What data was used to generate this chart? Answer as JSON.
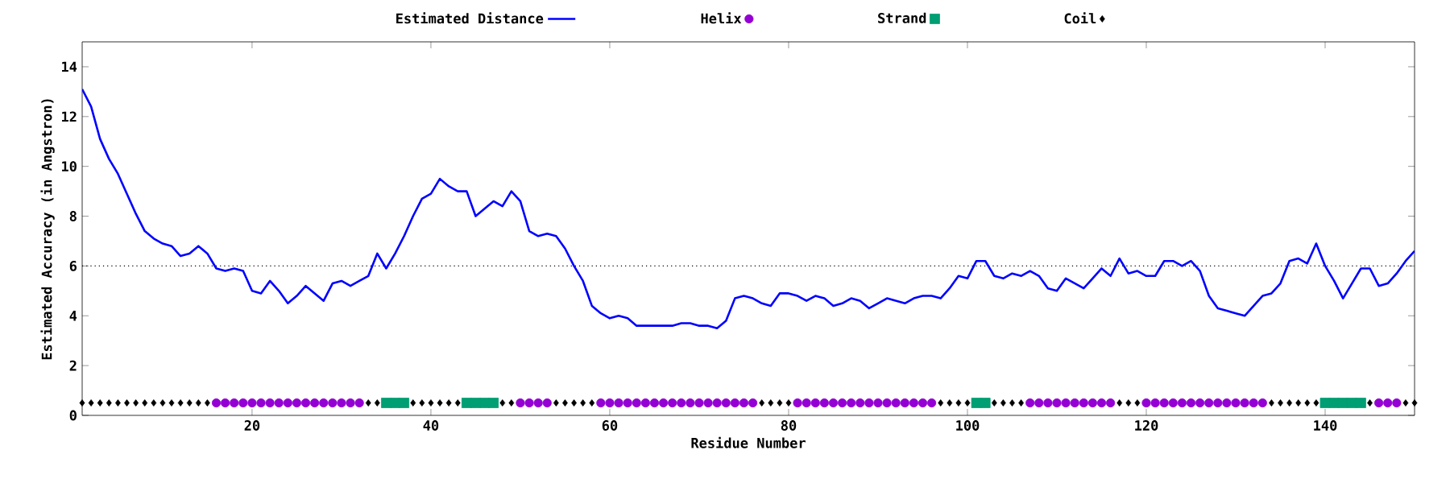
{
  "chart_data": {
    "type": "line",
    "xlabel": "Residue Number",
    "ylabel": "Estimated Accuracy (in Angstron)",
    "xlim": [
      1,
      150
    ],
    "ylim": [
      0,
      15
    ],
    "xticks": [
      20,
      40,
      60,
      80,
      100,
      120,
      140
    ],
    "yticks": [
      0,
      2,
      4,
      6,
      8,
      10,
      12,
      14
    ],
    "legend": "top",
    "ref_lines": [
      {
        "axis": "y",
        "value": 6,
        "color": "#000000",
        "line_style": "dotted"
      }
    ],
    "series": [
      {
        "name": "Estimated Distance",
        "color": "#0000ff",
        "marker": "none",
        "line_style": "solid",
        "x": [
          1,
          2,
          3,
          4,
          5,
          6,
          7,
          8,
          9,
          10,
          11,
          12,
          13,
          14,
          15,
          16,
          17,
          18,
          19,
          20,
          21,
          22,
          23,
          24,
          25,
          26,
          27,
          28,
          29,
          30,
          31,
          32,
          33,
          34,
          35,
          36,
          37,
          38,
          39,
          40,
          41,
          42,
          43,
          44,
          45,
          46,
          47,
          48,
          49,
          50,
          51,
          52,
          53,
          54,
          55,
          56,
          57,
          58,
          59,
          60,
          61,
          62,
          63,
          64,
          65,
          66,
          67,
          68,
          69,
          70,
          71,
          72,
          73,
          74,
          75,
          76,
          77,
          78,
          79,
          80,
          81,
          82,
          83,
          84,
          85,
          86,
          87,
          88,
          89,
          90,
          91,
          92,
          93,
          94,
          95,
          96,
          97,
          98,
          99,
          100,
          101,
          102,
          103,
          104,
          105,
          106,
          107,
          108,
          109,
          110,
          111,
          112,
          113,
          114,
          115,
          116,
          117,
          118,
          119,
          120,
          121,
          122,
          123,
          124,
          125,
          126,
          127,
          128,
          129,
          130,
          131,
          132,
          133,
          134,
          135,
          136,
          137,
          138,
          139,
          140,
          141,
          142,
          143,
          144,
          145,
          146,
          147,
          148,
          149,
          150
        ],
        "values": [
          13.1,
          12.4,
          11.1,
          10.3,
          9.7,
          8.9,
          8.1,
          7.4,
          7.1,
          6.9,
          6.8,
          6.4,
          6.5,
          6.8,
          6.5,
          5.9,
          5.8,
          5.9,
          5.8,
          5.0,
          4.9,
          5.4,
          5.0,
          4.5,
          4.8,
          5.2,
          4.9,
          4.6,
          5.3,
          5.4,
          5.2,
          5.4,
          5.6,
          6.5,
          5.9,
          6.5,
          7.2,
          8.0,
          8.7,
          8.9,
          9.5,
          9.2,
          9.0,
          9.0,
          8.0,
          8.3,
          8.6,
          8.4,
          9.0,
          8.6,
          7.4,
          7.2,
          7.3,
          7.2,
          6.7,
          6.0,
          5.4,
          4.4,
          4.1,
          3.9,
          4.0,
          3.9,
          3.6,
          3.6,
          3.6,
          3.6,
          3.6,
          3.7,
          3.7,
          3.6,
          3.6,
          3.5,
          3.8,
          4.7,
          4.8,
          4.7,
          4.5,
          4.4,
          4.9,
          4.9,
          4.8,
          4.6,
          4.8,
          4.7,
          4.4,
          4.5,
          4.7,
          4.6,
          4.3,
          4.5,
          4.7,
          4.6,
          4.5,
          4.7,
          4.8,
          4.8,
          4.7,
          5.1,
          5.6,
          5.5,
          6.2,
          6.2,
          5.6,
          5.5,
          5.7,
          5.6,
          5.8,
          5.6,
          5.1,
          5.0,
          5.5,
          5.3,
          5.1,
          5.5,
          5.9,
          5.6,
          6.3,
          5.7,
          5.8,
          5.6,
          5.6,
          6.2,
          6.2,
          6.0,
          6.2,
          5.8,
          4.8,
          4.3,
          4.2,
          4.1,
          4.0,
          4.4,
          4.8,
          4.9,
          5.3,
          6.2,
          6.3,
          6.1,
          6.9,
          6.0,
          5.4,
          4.7,
          5.3,
          5.9,
          5.9,
          5.2,
          5.3,
          5.7,
          6.2,
          6.6
        ]
      },
      {
        "name": "Helix",
        "type": "scatter",
        "color": "#9400d3",
        "marker": "circle",
        "x": [
          16,
          17,
          18,
          19,
          20,
          21,
          22,
          23,
          24,
          25,
          26,
          27,
          28,
          29,
          30,
          31,
          32,
          50,
          51,
          52,
          53,
          59,
          60,
          61,
          62,
          63,
          64,
          65,
          66,
          67,
          68,
          69,
          70,
          71,
          72,
          73,
          74,
          75,
          76,
          81,
          82,
          83,
          84,
          85,
          86,
          87,
          88,
          89,
          90,
          91,
          92,
          93,
          94,
          95,
          96,
          107,
          108,
          109,
          110,
          111,
          112,
          113,
          114,
          115,
          116,
          120,
          121,
          122,
          123,
          124,
          125,
          126,
          127,
          128,
          129,
          130,
          131,
          132,
          133,
          146,
          147,
          148
        ],
        "values": [
          0.5,
          0.5,
          0.5,
          0.5,
          0.5,
          0.5,
          0.5,
          0.5,
          0.5,
          0.5,
          0.5,
          0.5,
          0.5,
          0.5,
          0.5,
          0.5,
          0.5,
          0.5,
          0.5,
          0.5,
          0.5,
          0.5,
          0.5,
          0.5,
          0.5,
          0.5,
          0.5,
          0.5,
          0.5,
          0.5,
          0.5,
          0.5,
          0.5,
          0.5,
          0.5,
          0.5,
          0.5,
          0.5,
          0.5,
          0.5,
          0.5,
          0.5,
          0.5,
          0.5,
          0.5,
          0.5,
          0.5,
          0.5,
          0.5,
          0.5,
          0.5,
          0.5,
          0.5,
          0.5,
          0.5,
          0.5,
          0.5,
          0.5,
          0.5,
          0.5,
          0.5,
          0.5,
          0.5,
          0.5,
          0.5,
          0.5,
          0.5,
          0.5,
          0.5,
          0.5,
          0.5,
          0.5,
          0.5,
          0.5,
          0.5,
          0.5,
          0.5,
          0.5,
          0.5,
          0.5,
          0.5,
          0.5
        ]
      },
      {
        "name": "Strand",
        "type": "scatter",
        "color": "#009e73",
        "marker": "square",
        "x": [
          35,
          36,
          37,
          44,
          45,
          46,
          47,
          101,
          102,
          140,
          141,
          142,
          143,
          144
        ],
        "values": [
          0.5,
          0.5,
          0.5,
          0.5,
          0.5,
          0.5,
          0.5,
          0.5,
          0.5,
          0.5,
          0.5,
          0.5,
          0.5,
          0.5
        ]
      },
      {
        "name": "Coil",
        "type": "scatter",
        "color": "#000000",
        "marker": "diamond",
        "x": [
          1,
          2,
          3,
          4,
          5,
          6,
          7,
          8,
          9,
          10,
          11,
          12,
          13,
          14,
          15,
          33,
          34,
          38,
          39,
          40,
          41,
          42,
          43,
          48,
          49,
          54,
          55,
          56,
          57,
          58,
          77,
          78,
          79,
          80,
          97,
          98,
          99,
          100,
          103,
          104,
          105,
          106,
          117,
          118,
          119,
          134,
          135,
          136,
          137,
          138,
          139,
          145,
          149,
          150
        ],
        "values": [
          0.5,
          0.5,
          0.5,
          0.5,
          0.5,
          0.5,
          0.5,
          0.5,
          0.5,
          0.5,
          0.5,
          0.5,
          0.5,
          0.5,
          0.5,
          0.5,
          0.5,
          0.5,
          0.5,
          0.5,
          0.5,
          0.5,
          0.5,
          0.5,
          0.5,
          0.5,
          0.5,
          0.5,
          0.5,
          0.5,
          0.5,
          0.5,
          0.5,
          0.5,
          0.5,
          0.5,
          0.5,
          0.5,
          0.5,
          0.5,
          0.5,
          0.5,
          0.5,
          0.5,
          0.5,
          0.5,
          0.5,
          0.5,
          0.5,
          0.5,
          0.5,
          0.5,
          0.5,
          0.5
        ]
      }
    ]
  }
}
